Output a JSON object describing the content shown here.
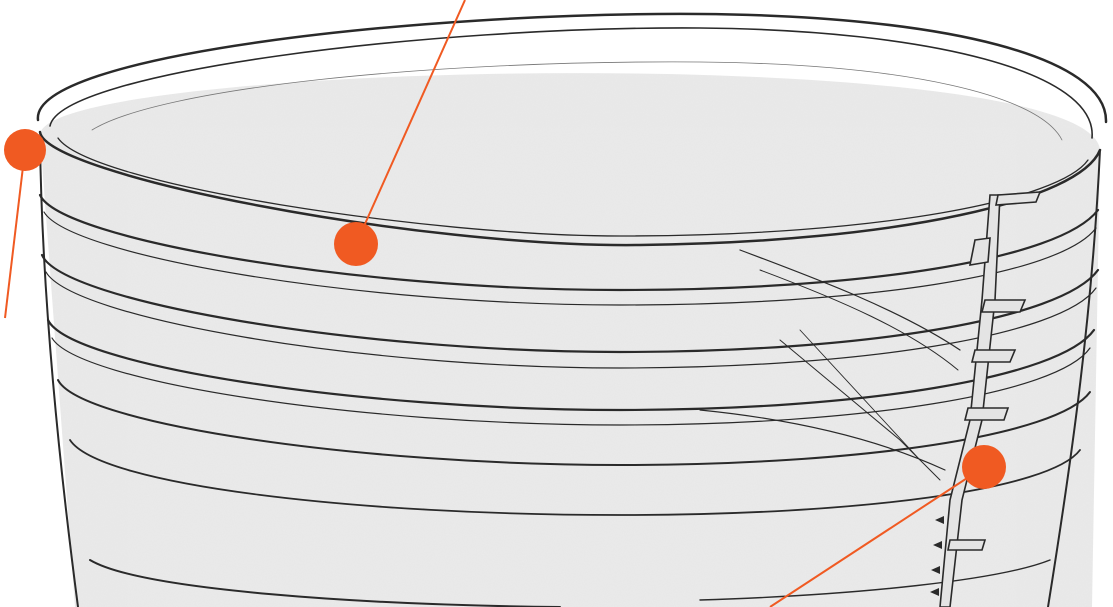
{
  "figure": {
    "subject": "pail-drum-rim-line-drawing",
    "colors": {
      "background": "#ffffff",
      "drum_fill": "#ebebeb",
      "drum_stroke": "#2a2a2a",
      "accent": "#f05a22"
    }
  },
  "callouts": [
    {
      "name": "callout-marker-outer-rim"
    },
    {
      "name": "callout-marker-inner-rim"
    },
    {
      "name": "callout-marker-seam"
    }
  ]
}
